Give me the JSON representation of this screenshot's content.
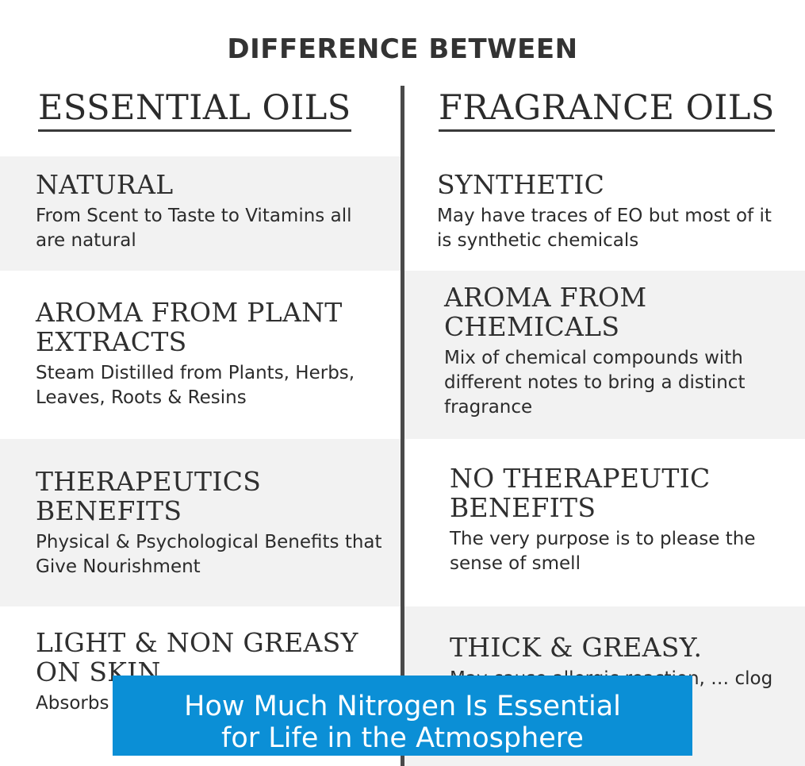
{
  "title": "DIFFERENCE BETWEEN",
  "left_header": "ESSENTIAL OILS",
  "right_header": "FRAGRANCE OILS",
  "left": [
    {
      "heading": "NATURAL",
      "text": "From Scent to Taste to Vitamins all are natural"
    },
    {
      "heading": "AROMA FROM PLANT EXTRACTS",
      "text": "Steam Distilled from Plants, Herbs, Leaves, Roots & Resins"
    },
    {
      "heading": "THERAPEUTICS BENEFITS",
      "text": "Physical & Psychological Benefits that Give Nourishment"
    },
    {
      "heading": "LIGHT & NON GREASY ON SKIN",
      "text": "Absorbs … Without …"
    }
  ],
  "right": [
    {
      "heading": "SYNTHETIC",
      "text": "May have traces of EO but most of it is synthetic chemicals"
    },
    {
      "heading": "AROMA FROM CHEMICALS",
      "text": "Mix of chemical compounds with different notes to bring a distinct fragrance"
    },
    {
      "heading": "NO THERAPEUTIC BENEFITS",
      "text": "The very purpose is to please the sense of smell"
    },
    {
      "heading": "THICK & GREASY.",
      "text": "May cause allergic reaction, … clog"
    }
  ],
  "banner": {
    "line1": "How Much Nitrogen Is Essential",
    "line2": "for Life in the Atmosphere"
  }
}
